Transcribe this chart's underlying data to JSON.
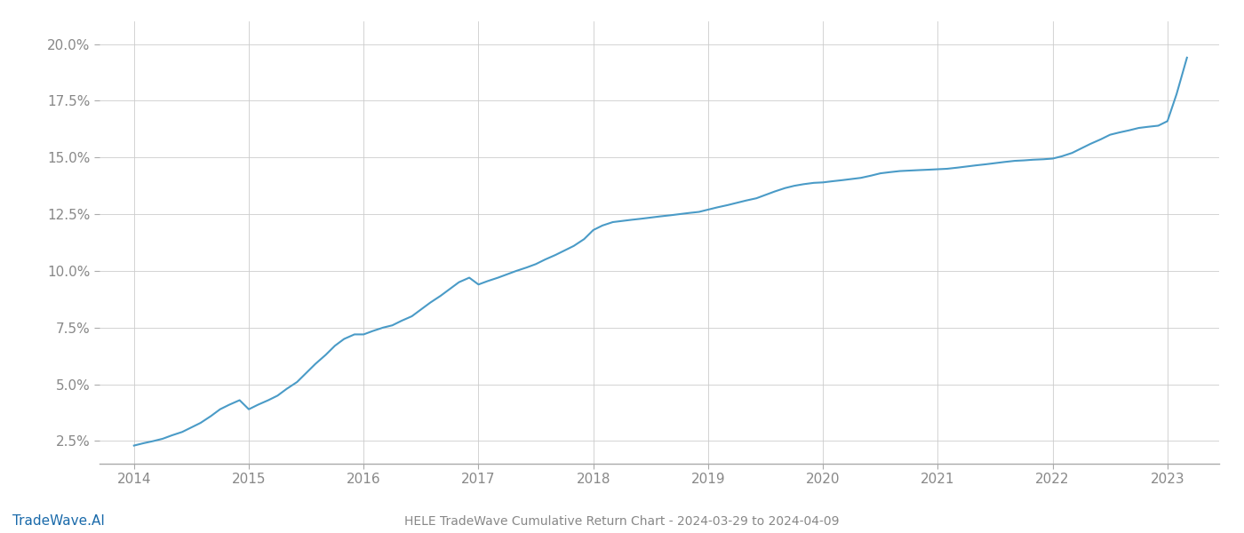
{
  "title": "HELE TradeWave Cumulative Return Chart - 2024-03-29 to 2024-04-09",
  "watermark": "TradeWave.AI",
  "line_color": "#4a9bc7",
  "background_color": "#ffffff",
  "grid_color": "#cccccc",
  "x_values": [
    2014.0,
    2014.08,
    2014.17,
    2014.25,
    2014.33,
    2014.42,
    2014.5,
    2014.58,
    2014.67,
    2014.75,
    2014.83,
    2014.92,
    2015.0,
    2015.08,
    2015.17,
    2015.25,
    2015.33,
    2015.42,
    2015.5,
    2015.58,
    2015.67,
    2015.75,
    2015.83,
    2015.92,
    2016.0,
    2016.08,
    2016.17,
    2016.25,
    2016.33,
    2016.42,
    2016.5,
    2016.58,
    2016.67,
    2016.75,
    2016.83,
    2016.92,
    2017.0,
    2017.08,
    2017.17,
    2017.25,
    2017.33,
    2017.42,
    2017.5,
    2017.58,
    2017.67,
    2017.75,
    2017.83,
    2017.92,
    2018.0,
    2018.08,
    2018.17,
    2018.25,
    2018.33,
    2018.42,
    2018.5,
    2018.58,
    2018.67,
    2018.75,
    2018.83,
    2018.92,
    2019.0,
    2019.08,
    2019.17,
    2019.25,
    2019.33,
    2019.42,
    2019.5,
    2019.58,
    2019.67,
    2019.75,
    2019.83,
    2019.92,
    2020.0,
    2020.08,
    2020.17,
    2020.25,
    2020.33,
    2020.42,
    2020.5,
    2020.58,
    2020.67,
    2020.75,
    2020.83,
    2020.92,
    2021.0,
    2021.08,
    2021.17,
    2021.25,
    2021.33,
    2021.42,
    2021.5,
    2021.58,
    2021.67,
    2021.75,
    2021.83,
    2021.92,
    2022.0,
    2022.08,
    2022.17,
    2022.25,
    2022.33,
    2022.42,
    2022.5,
    2022.58,
    2022.67,
    2022.75,
    2022.83,
    2022.92,
    2023.0,
    2023.08,
    2023.17
  ],
  "y_values": [
    2.3,
    2.4,
    2.5,
    2.6,
    2.75,
    2.9,
    3.1,
    3.3,
    3.6,
    3.9,
    4.1,
    4.3,
    3.9,
    4.1,
    4.3,
    4.5,
    4.8,
    5.1,
    5.5,
    5.9,
    6.3,
    6.7,
    7.0,
    7.2,
    7.2,
    7.35,
    7.5,
    7.6,
    7.8,
    8.0,
    8.3,
    8.6,
    8.9,
    9.2,
    9.5,
    9.7,
    9.4,
    9.55,
    9.7,
    9.85,
    10.0,
    10.15,
    10.3,
    10.5,
    10.7,
    10.9,
    11.1,
    11.4,
    11.8,
    12.0,
    12.15,
    12.2,
    12.25,
    12.3,
    12.35,
    12.4,
    12.45,
    12.5,
    12.55,
    12.6,
    12.7,
    12.8,
    12.9,
    13.0,
    13.1,
    13.2,
    13.35,
    13.5,
    13.65,
    13.75,
    13.82,
    13.88,
    13.9,
    13.95,
    14.0,
    14.05,
    14.1,
    14.2,
    14.3,
    14.35,
    14.4,
    14.42,
    14.44,
    14.46,
    14.48,
    14.5,
    14.55,
    14.6,
    14.65,
    14.7,
    14.75,
    14.8,
    14.85,
    14.87,
    14.9,
    14.92,
    14.95,
    15.05,
    15.2,
    15.4,
    15.6,
    15.8,
    16.0,
    16.1,
    16.2,
    16.3,
    16.35,
    16.4,
    16.6,
    17.8,
    19.4
  ],
  "xlim": [
    2013.7,
    2023.45
  ],
  "ylim": [
    1.5,
    21.0
  ],
  "yticks": [
    2.5,
    5.0,
    7.5,
    10.0,
    12.5,
    15.0,
    17.5,
    20.0
  ],
  "xticks": [
    2014,
    2015,
    2016,
    2017,
    2018,
    2019,
    2020,
    2021,
    2022,
    2023
  ],
  "line_width": 1.5,
  "tick_label_color": "#888888",
  "title_color": "#888888",
  "watermark_color": "#1a6aaa"
}
